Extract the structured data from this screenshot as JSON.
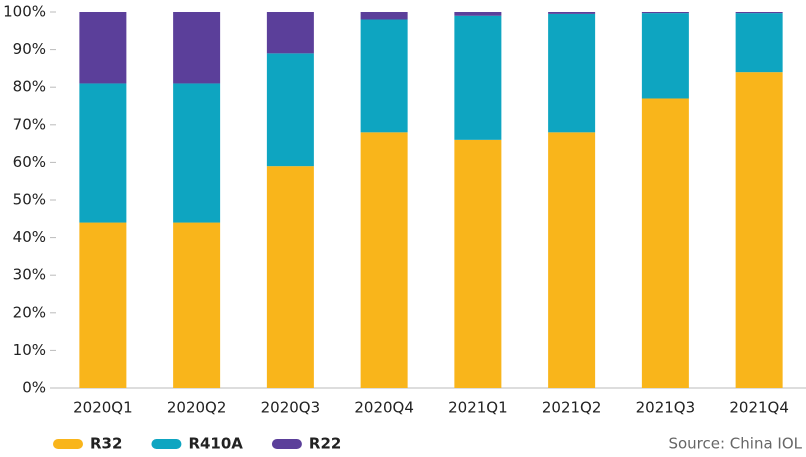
{
  "chart_data": {
    "type": "stacked_bar",
    "categories": [
      "2020Q1",
      "2020Q2",
      "2020Q3",
      "2020Q4",
      "2021Q1",
      "2021Q2",
      "2021Q3",
      "2021Q4"
    ],
    "series": [
      {
        "name": "R32",
        "color": "#f9b51b",
        "values": [
          44,
          44,
          59,
          68,
          66,
          68,
          77,
          84
        ]
      },
      {
        "name": "R410A",
        "color": "#0ea5c1",
        "values": [
          37,
          37,
          30,
          30,
          33,
          31.5,
          22.7,
          15.7
        ]
      },
      {
        "name": "R22",
        "color": "#5b3f9a",
        "values": [
          19,
          19,
          11,
          2,
          1,
          0.5,
          0.3,
          0.3
        ]
      }
    ],
    "ylim": [
      0,
      100
    ],
    "yticks": [
      {
        "value": 0,
        "label": "0%"
      },
      {
        "value": 10,
        "label": "10%"
      },
      {
        "value": 20,
        "label": "20%"
      },
      {
        "value": 30,
        "label": "30%"
      },
      {
        "value": 40,
        "label": "40%"
      },
      {
        "value": 50,
        "label": "50%"
      },
      {
        "value": 60,
        "label": "60%"
      },
      {
        "value": 70,
        "label": "70%"
      },
      {
        "value": 80,
        "label": "80%"
      },
      {
        "value": 90,
        "label": "90%"
      },
      {
        "value": 100,
        "label": "100%"
      }
    ],
    "grid": false,
    "legend": "bottom-left",
    "source": "Source: China IOL"
  }
}
